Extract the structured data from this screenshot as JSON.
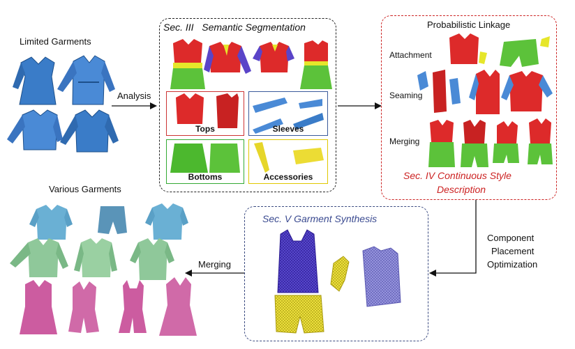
{
  "colors": {
    "seg_border": "#222222",
    "prob_border": "#cc2222",
    "synth_border": "#3a4a80",
    "tops_border": "#cc3333",
    "sleeves_border": "#3a5a9a",
    "bottoms_border": "#33aa33",
    "accessories_border": "#e0c800",
    "sec_red": "#cc2222",
    "sec_blue": "#3a4a90"
  },
  "left": {
    "limited_title": "Limited Garments",
    "analysis_label": "Analysis",
    "various_title": "Various Garments",
    "merging_label": "Merging"
  },
  "segmentation": {
    "title_sec": "Sec. III",
    "title_name": "Semantic Segmentation",
    "tops": "Tops",
    "sleeves": "Sleeves",
    "bottoms": "Bottoms",
    "accessories": "Accessories"
  },
  "probabilistic": {
    "title": "Probabilistic  Linkage",
    "attachment": "Attachment",
    "seaming": "Seaming",
    "merging": "Merging",
    "sec_line1": "Sec. IV  Continuous Style",
    "sec_line2": "Description"
  },
  "synthesis": {
    "title": "Sec. V  Garment Synthesis"
  },
  "optimization": {
    "line1": "Component",
    "line2": "Placement",
    "line3": "Optimization"
  }
}
